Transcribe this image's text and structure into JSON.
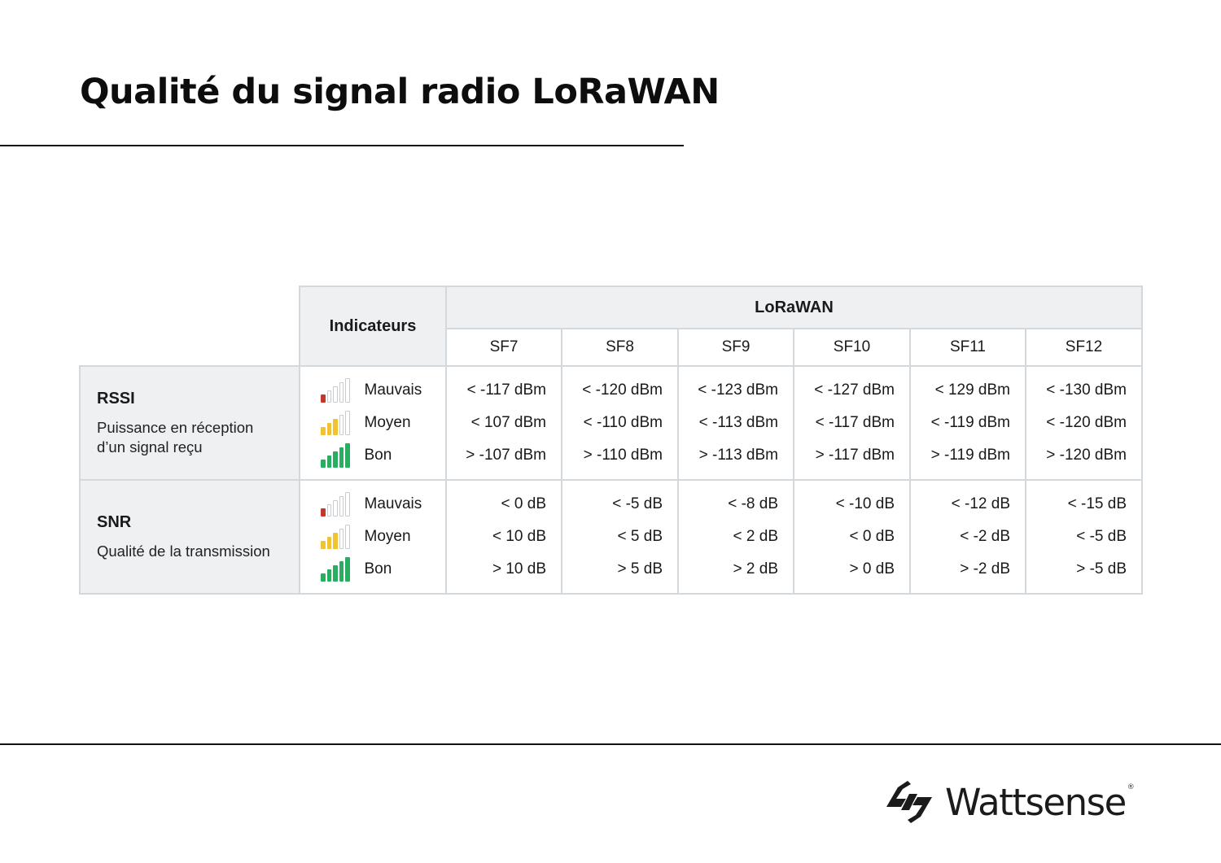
{
  "title": "Qualité du signal radio LoRaWAN",
  "header": {
    "indicators_label": "Indicateurs",
    "group_label": "LoRaWAN",
    "spreading_factors": [
      "SF7",
      "SF8",
      "SF9",
      "SF10",
      "SF11",
      "SF12"
    ]
  },
  "levels": [
    {
      "label": "Mauvais",
      "filled_bars": 1,
      "color": "#c0392b"
    },
    {
      "label": "Moyen",
      "filled_bars": 3,
      "color": "#f1c232"
    },
    {
      "label": "Bon",
      "filled_bars": 5,
      "color": "#27ae60"
    }
  ],
  "metrics": [
    {
      "name": "RSSI",
      "description": "Puissance en réception d’un signal reçu",
      "values": [
        [
          "< -117 dBm",
          "< -120 dBm",
          "< -123 dBm",
          "< -127 dBm",
          "< 129 dBm",
          "< -130 dBm"
        ],
        [
          "< 107 dBm",
          "< -110 dBm",
          "< -113 dBm",
          "< -117 dBm",
          "< -119 dBm",
          "< -120 dBm"
        ],
        [
          "> -107 dBm",
          "> -110 dBm",
          "> -113 dBm",
          "> -117 dBm",
          "> -119 dBm",
          "> -120 dBm"
        ]
      ]
    },
    {
      "name": "SNR",
      "description": "Qualité de la transmission",
      "values": [
        [
          "< 0 dB",
          "< -5 dB",
          "< -8 dB",
          "< -10 dB",
          "< -12 dB",
          "< -15 dB"
        ],
        [
          "< 10 dB",
          "< 5 dB",
          "< 2 dB",
          "< 0 dB",
          "< -2 dB",
          "< -5 dB"
        ],
        [
          "> 10 dB",
          "> 5 dB",
          "> 2 dB",
          "> 0 dB",
          "> -2 dB",
          "> -5 dB"
        ]
      ]
    }
  ],
  "footer": {
    "brand_name": "Wattsense",
    "brand_mark": "®",
    "logo_icon": "bolt-logo-icon"
  }
}
